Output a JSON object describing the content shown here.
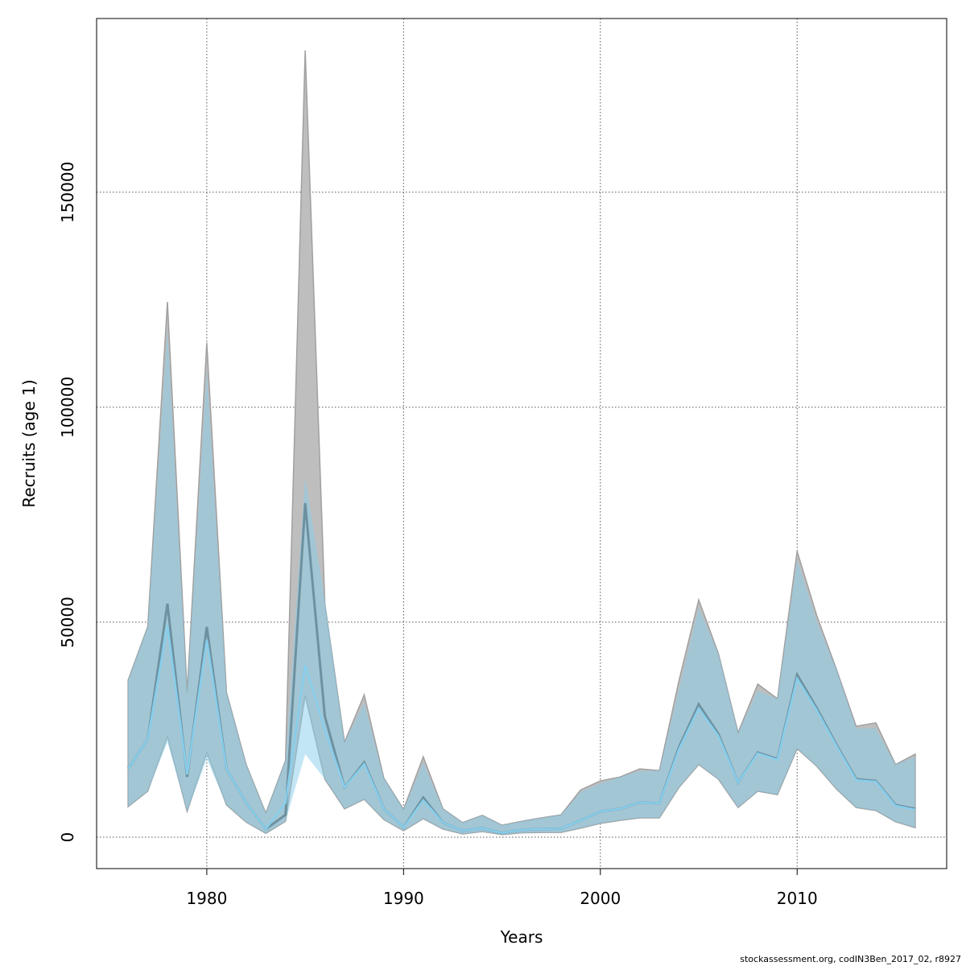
{
  "chart_data": {
    "type": "area",
    "title": "",
    "xlabel": "Years",
    "ylabel": "Recruits (age 1)",
    "xlim": [
      1974.4,
      2017.6
    ],
    "ylim": [
      -7300,
      190400
    ],
    "xticks": [
      1980,
      1990,
      2000,
      2010
    ],
    "xtick_labels": [
      "1980",
      "1990",
      "2000",
      "2010"
    ],
    "yticks": [
      0,
      50000,
      100000,
      150000
    ],
    "ytick_labels": [
      "0",
      "50000",
      "100000",
      "150000"
    ],
    "grid": true,
    "x": [
      1976,
      1977,
      1978,
      1979,
      1980,
      1981,
      1982,
      1983,
      1984,
      1985,
      1986,
      1987,
      1988,
      1989,
      1990,
      1991,
      1992,
      1993,
      1994,
      1995,
      1996,
      1997,
      1998,
      1999,
      2000,
      2001,
      2002,
      2003,
      2004,
      2005,
      2006,
      2007,
      2008,
      2009,
      2010,
      2011,
      2012,
      2013,
      2014,
      2015,
      2016
    ],
    "series": [
      {
        "color": "#bebebe",
        "line_color": "#3a3a3a",
        "estimate": [
          15900,
          22800,
          54300,
          14000,
          48900,
          15900,
          8000,
          1900,
          5200,
          77700,
          28100,
          11600,
          17400,
          6600,
          2300,
          9200,
          3400,
          1500,
          2100,
          1000,
          1700,
          1900,
          2000,
          3900,
          6000,
          6600,
          8100,
          7900,
          21000,
          30900,
          24000,
          12700,
          19700,
          18200,
          37800,
          30000,
          21500,
          13500,
          13100,
          7500,
          6600
        ],
        "lower": [
          7100,
          10700,
          23400,
          6000,
          19700,
          7500,
          3500,
          900,
          3700,
          33000,
          13500,
          6600,
          8800,
          4100,
          1500,
          4300,
          1900,
          750,
          1300,
          600,
          1000,
          1100,
          1100,
          2100,
          3200,
          3900,
          4500,
          4500,
          11600,
          16900,
          13500,
          6900,
          10700,
          9900,
          20600,
          16500,
          11200,
          6900,
          6200,
          3600,
          2200
        ],
        "upper": [
          36500,
          49000,
          124500,
          33700,
          115000,
          33700,
          16900,
          5600,
          17800,
          183000,
          54300,
          22100,
          33100,
          13700,
          6500,
          18700,
          6600,
          3400,
          5100,
          2800,
          3700,
          4500,
          5200,
          11000,
          13100,
          14000,
          15900,
          15500,
          36500,
          55200,
          42700,
          24300,
          35600,
          32200,
          66500,
          51500,
          39000,
          25800,
          26600,
          16900,
          19300
        ]
      },
      {
        "color": "#87ceeb",
        "line_color": "#87ceeb",
        "estimate": [
          15900,
          22800,
          49300,
          14600,
          45900,
          15900,
          8000,
          1900,
          8000,
          40000,
          25000,
          11600,
          17000,
          6600,
          2300,
          8600,
          3400,
          1500,
          2100,
          1000,
          1700,
          1900,
          2000,
          3900,
          6000,
          6600,
          8100,
          7900,
          20500,
          30000,
          23500,
          12700,
          19500,
          18000,
          36900,
          29500,
          21200,
          13300,
          12900,
          7300,
          6400
        ],
        "lower": [
          7100,
          10700,
          22100,
          6000,
          18200,
          7500,
          3500,
          900,
          3700,
          19300,
          13500,
          6600,
          8800,
          4100,
          1500,
          4300,
          1900,
          750,
          1300,
          600,
          1000,
          1100,
          1100,
          2100,
          3200,
          3900,
          4500,
          4500,
          11600,
          16900,
          13500,
          6900,
          10700,
          9900,
          20600,
          16500,
          11200,
          6900,
          6200,
          3600,
          2200
        ],
        "upper": [
          36500,
          49000,
          118000,
          33700,
          108600,
          33700,
          16900,
          5600,
          17800,
          83700,
          55200,
          22100,
          31300,
          13700,
          6500,
          17400,
          6600,
          3400,
          5100,
          2800,
          3700,
          4500,
          5200,
          10500,
          12500,
          14000,
          15400,
          15500,
          34600,
          53400,
          42700,
          24300,
          34100,
          32200,
          64600,
          50200,
          39000,
          25300,
          25300,
          16900,
          18700
        ]
      }
    ]
  },
  "footer": "stockassessment.org, codIN3Ben_2017_02, r8927"
}
